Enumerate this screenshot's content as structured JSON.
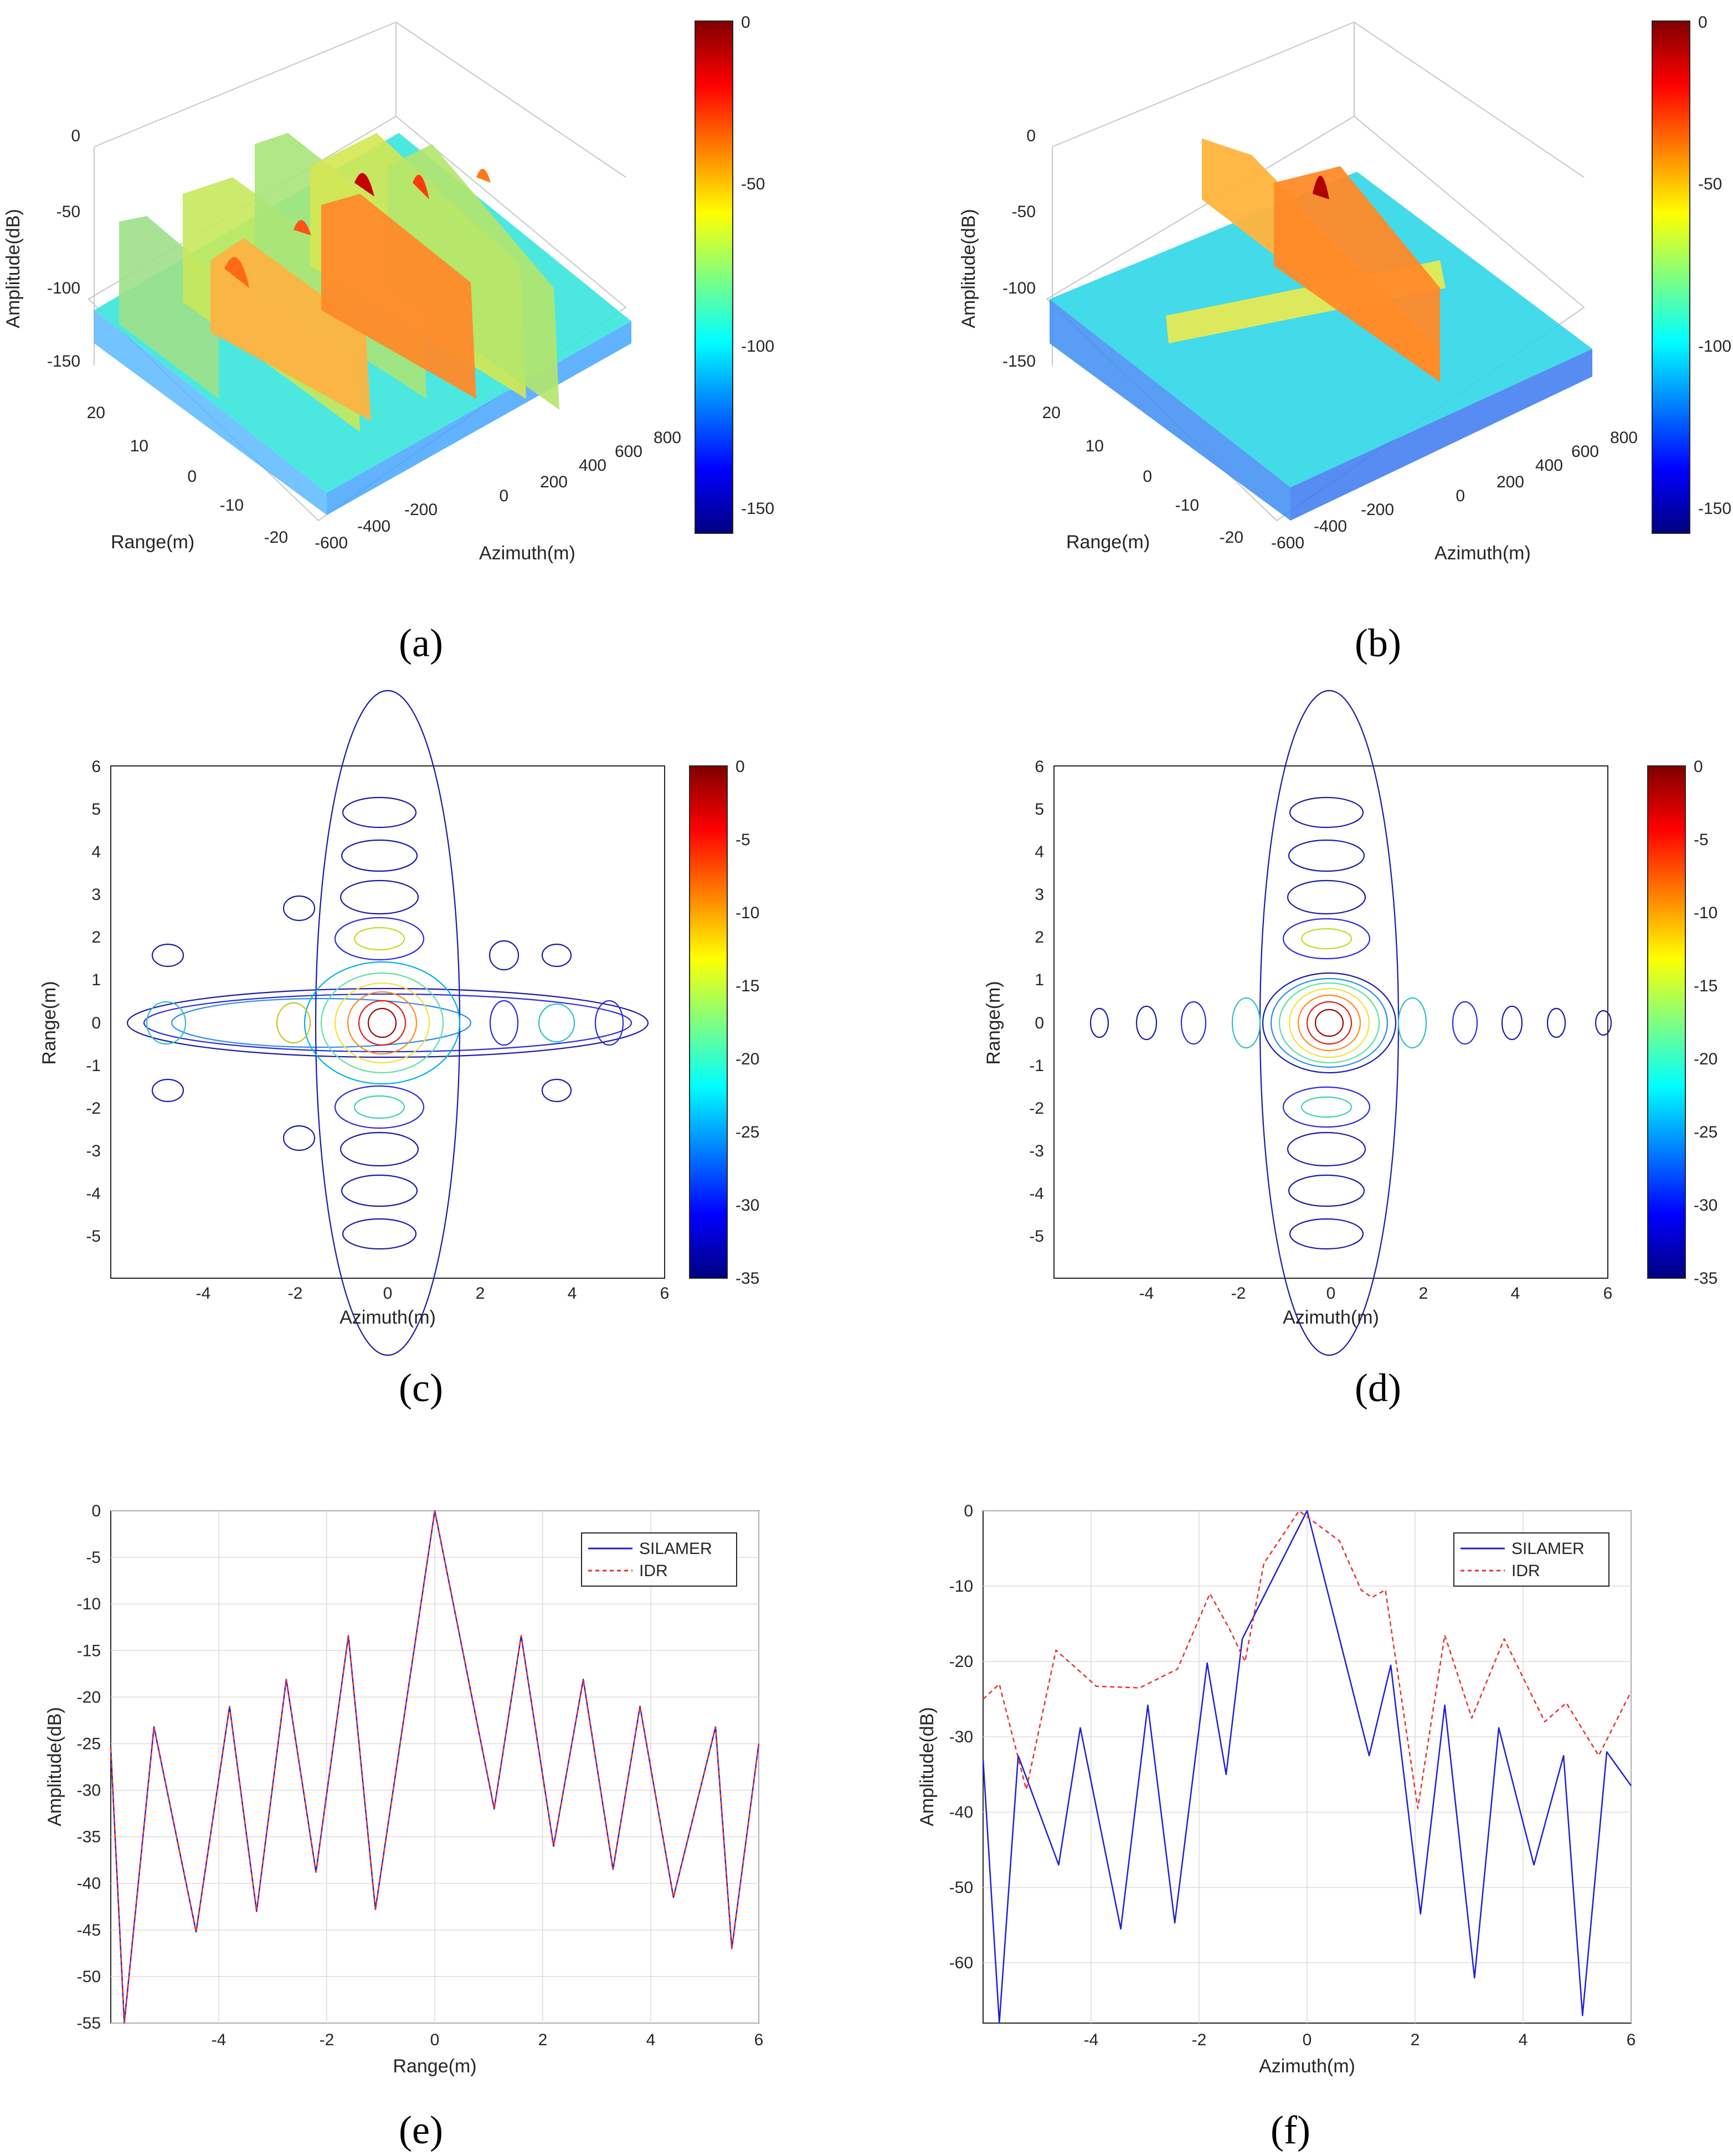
{
  "panel_captions": [
    "(a)",
    "(b)",
    "(c)",
    "(d)",
    "(e)",
    "(f)"
  ],
  "colors": {
    "silamer": "#1f1fd6",
    "idr": "#e83030",
    "grid": "#dcdcdc",
    "axis": "#262626"
  },
  "chart_data": [
    {
      "panel": "a",
      "type": "surface",
      "zlabel": "Amplitude(dB)",
      "xlabel": "Azimuth(m)",
      "ylabel": "Range(m)",
      "zticks": [
        "0",
        "-50",
        "-100",
        "-150"
      ],
      "range_ticks": [
        "20",
        "10",
        "0",
        "-10",
        "-20"
      ],
      "azimuth_ticks": [
        "-600",
        "-400",
        "-200",
        "0",
        "200",
        "400",
        "600",
        "800"
      ],
      "colorbar": {
        "ticks": [
          "0",
          "-50",
          "-100",
          "-150"
        ],
        "range": [
          -160,
          0
        ]
      },
      "targets": [
        {
          "azimuth": -250,
          "range": -15,
          "peak_db": -25
        },
        {
          "azimuth": 0,
          "range": 0,
          "peak_db": 0
        },
        {
          "azimuth": 200,
          "range": -8,
          "peak_db": -18
        },
        {
          "azimuth": 250,
          "range": 15,
          "peak_db": -12
        },
        {
          "azimuth": 500,
          "range": 10,
          "peak_db": -30
        },
        {
          "azimuth": -300,
          "range": 5,
          "peak_db": -38
        }
      ]
    },
    {
      "panel": "b",
      "type": "surface",
      "zlabel": "Amplitude(dB)",
      "xlabel": "Azimuth(m)",
      "ylabel": "Range(m)",
      "zticks": [
        "0",
        "-50",
        "-100",
        "-150"
      ],
      "range_ticks": [
        "20",
        "10",
        "0",
        "-10",
        "-20"
      ],
      "azimuth_ticks": [
        "-600",
        "-400",
        "-200",
        "0",
        "200",
        "400",
        "600",
        "800"
      ],
      "colorbar": {
        "ticks": [
          "0",
          "-50",
          "-100",
          "-150"
        ],
        "range": [
          -160,
          0
        ]
      },
      "targets": [
        {
          "azimuth": 0,
          "range": 0,
          "peak_db": 0
        }
      ]
    },
    {
      "panel": "c",
      "type": "contour",
      "xlabel": "Azimuth(m)",
      "ylabel": "Range(m)",
      "xlim": [
        -6,
        6
      ],
      "ylim": [
        -6,
        6
      ],
      "xticks": [
        "-4",
        "-2",
        "0",
        "2",
        "4",
        "6"
      ],
      "yticks": [
        "6",
        "5",
        "4",
        "3",
        "2",
        "1",
        "0",
        "-1",
        "-2",
        "-3",
        "-4",
        "-5"
      ],
      "colorbar": {
        "ticks": [
          "0",
          "-5",
          "-10",
          "-15",
          "-20",
          "-25",
          "-30",
          "-35"
        ],
        "range": [
          -35,
          0
        ]
      },
      "contour_levels_db": [
        -3,
        -6,
        -10,
        -15,
        -20,
        -25,
        -30
      ]
    },
    {
      "panel": "d",
      "type": "contour",
      "xlabel": "Azimuth(m)",
      "ylabel": "Range(m)",
      "xlim": [
        -6,
        6
      ],
      "ylim": [
        -6,
        6
      ],
      "xticks": [
        "-4",
        "-2",
        "0",
        "2",
        "4",
        "6"
      ],
      "yticks": [
        "6",
        "5",
        "4",
        "3",
        "2",
        "1",
        "0",
        "-1",
        "-2",
        "-3",
        "-4",
        "-5"
      ],
      "colorbar": {
        "ticks": [
          "0",
          "-5",
          "-10",
          "-15",
          "-20",
          "-25",
          "-30",
          "-35"
        ],
        "range": [
          -35,
          0
        ]
      },
      "contour_levels_db": [
        -3,
        -6,
        -10,
        -15,
        -20,
        -25,
        -30
      ]
    },
    {
      "panel": "e",
      "type": "line",
      "xlabel": "Range(m)",
      "ylabel": "Amplitude(dB)",
      "xlim": [
        -6,
        6
      ],
      "ylim": [
        -55,
        0
      ],
      "xticks": [
        "-4",
        "-2",
        "0",
        "2",
        "4",
        "6"
      ],
      "yticks": [
        "0",
        "-5",
        "-10",
        "-15",
        "-20",
        "-25",
        "-30",
        "-35",
        "-40",
        "-45",
        "-50",
        "-55"
      ],
      "legend": [
        "SILAMER",
        "IDR"
      ],
      "legend_position": "top-right",
      "series": [
        {
          "name": "SILAMER",
          "style": "solid",
          "points": [
            [
              -6,
              -25.5
            ],
            [
              -5.75,
              -55
            ],
            [
              -5.2,
              -23.2
            ],
            [
              -4.42,
              -45.2
            ],
            [
              -3.8,
              -21
            ],
            [
              -3.3,
              -43
            ],
            [
              -2.75,
              -18.1
            ],
            [
              -2.2,
              -38.8
            ],
            [
              -1.6,
              -13.4
            ],
            [
              -1.1,
              -42.8
            ],
            [
              0,
              0
            ],
            [
              1.1,
              -32
            ],
            [
              1.6,
              -13.4
            ],
            [
              2.2,
              -36
            ],
            [
              2.75,
              -18.1
            ],
            [
              3.3,
              -38.5
            ],
            [
              3.8,
              -21
            ],
            [
              4.42,
              -41.5
            ],
            [
              5.2,
              -23.2
            ],
            [
              5.5,
              -47
            ],
            [
              6,
              -25
            ]
          ]
        },
        {
          "name": "IDR",
          "style": "dashed",
          "points": [
            [
              -6,
              -25.5
            ],
            [
              -5.75,
              -55
            ],
            [
              -5.2,
              -23.2
            ],
            [
              -4.42,
              -45.2
            ],
            [
              -3.8,
              -21
            ],
            [
              -3.3,
              -43
            ],
            [
              -2.75,
              -18.1
            ],
            [
              -2.2,
              -38.8
            ],
            [
              -1.6,
              -13.4
            ],
            [
              -1.1,
              -42.8
            ],
            [
              0,
              0
            ],
            [
              1.1,
              -32
            ],
            [
              1.6,
              -13.4
            ],
            [
              2.2,
              -36
            ],
            [
              2.75,
              -18.1
            ],
            [
              3.3,
              -38.5
            ],
            [
              3.8,
              -21
            ],
            [
              4.42,
              -41.5
            ],
            [
              5.2,
              -23.2
            ],
            [
              5.5,
              -47
            ],
            [
              6,
              -25
            ]
          ]
        }
      ]
    },
    {
      "panel": "f",
      "type": "line",
      "xlabel": "Azimuth(m)",
      "ylabel": "Amplitude(dB)",
      "xlim": [
        -6,
        6
      ],
      "ylim": [
        -68,
        0
      ],
      "xticks": [
        "-4",
        "-2",
        "0",
        "2",
        "4",
        "6"
      ],
      "yticks": [
        "0",
        "-10",
        "-20",
        "-30",
        "-40",
        "-50",
        "-60"
      ],
      "legend": [
        "SILAMER",
        "IDR"
      ],
      "legend_position": "top-right",
      "series": [
        {
          "name": "SILAMER",
          "style": "solid",
          "points": [
            [
              -6,
              -33
            ],
            [
              -5.7,
              -68
            ],
            [
              -5.35,
              -32.5
            ],
            [
              -4.6,
              -47
            ],
            [
              -4.2,
              -28.8
            ],
            [
              -3.45,
              -55.5
            ],
            [
              -2.95,
              -25.8
            ],
            [
              -2.45,
              -54.7
            ],
            [
              -1.85,
              -20.2
            ],
            [
              -1.5,
              -35
            ],
            [
              -1.2,
              -17
            ],
            [
              0,
              0
            ],
            [
              1.15,
              -32.5
            ],
            [
              1.55,
              -20.5
            ],
            [
              2.1,
              -53.5
            ],
            [
              2.55,
              -25.8
            ],
            [
              3.1,
              -62
            ],
            [
              3.55,
              -28.8
            ],
            [
              4.2,
              -47
            ],
            [
              4.75,
              -32.5
            ],
            [
              5.1,
              -67
            ],
            [
              5.55,
              -32
            ],
            [
              6,
              -36.5
            ]
          ]
        },
        {
          "name": "IDR",
          "style": "dashed",
          "points": [
            [
              -6,
              -25
            ],
            [
              -5.7,
              -23
            ],
            [
              -5.2,
              -37
            ],
            [
              -4.65,
              -18.5
            ],
            [
              -3.9,
              -23.3
            ],
            [
              -3.1,
              -23.5
            ],
            [
              -2.4,
              -21
            ],
            [
              -1.8,
              -11
            ],
            [
              -1.45,
              -15.5
            ],
            [
              -1.15,
              -20
            ],
            [
              -0.8,
              -7
            ],
            [
              -0.15,
              0
            ],
            [
              0.6,
              -4
            ],
            [
              1.0,
              -10.5
            ],
            [
              1.2,
              -11.5
            ],
            [
              1.45,
              -10.5
            ],
            [
              2.05,
              -39.5
            ],
            [
              2.55,
              -16.5
            ],
            [
              3.05,
              -27.5
            ],
            [
              3.65,
              -17
            ],
            [
              4.4,
              -28
            ],
            [
              4.8,
              -25.5
            ],
            [
              5.4,
              -32.5
            ],
            [
              6,
              -24
            ]
          ]
        }
      ]
    }
  ]
}
